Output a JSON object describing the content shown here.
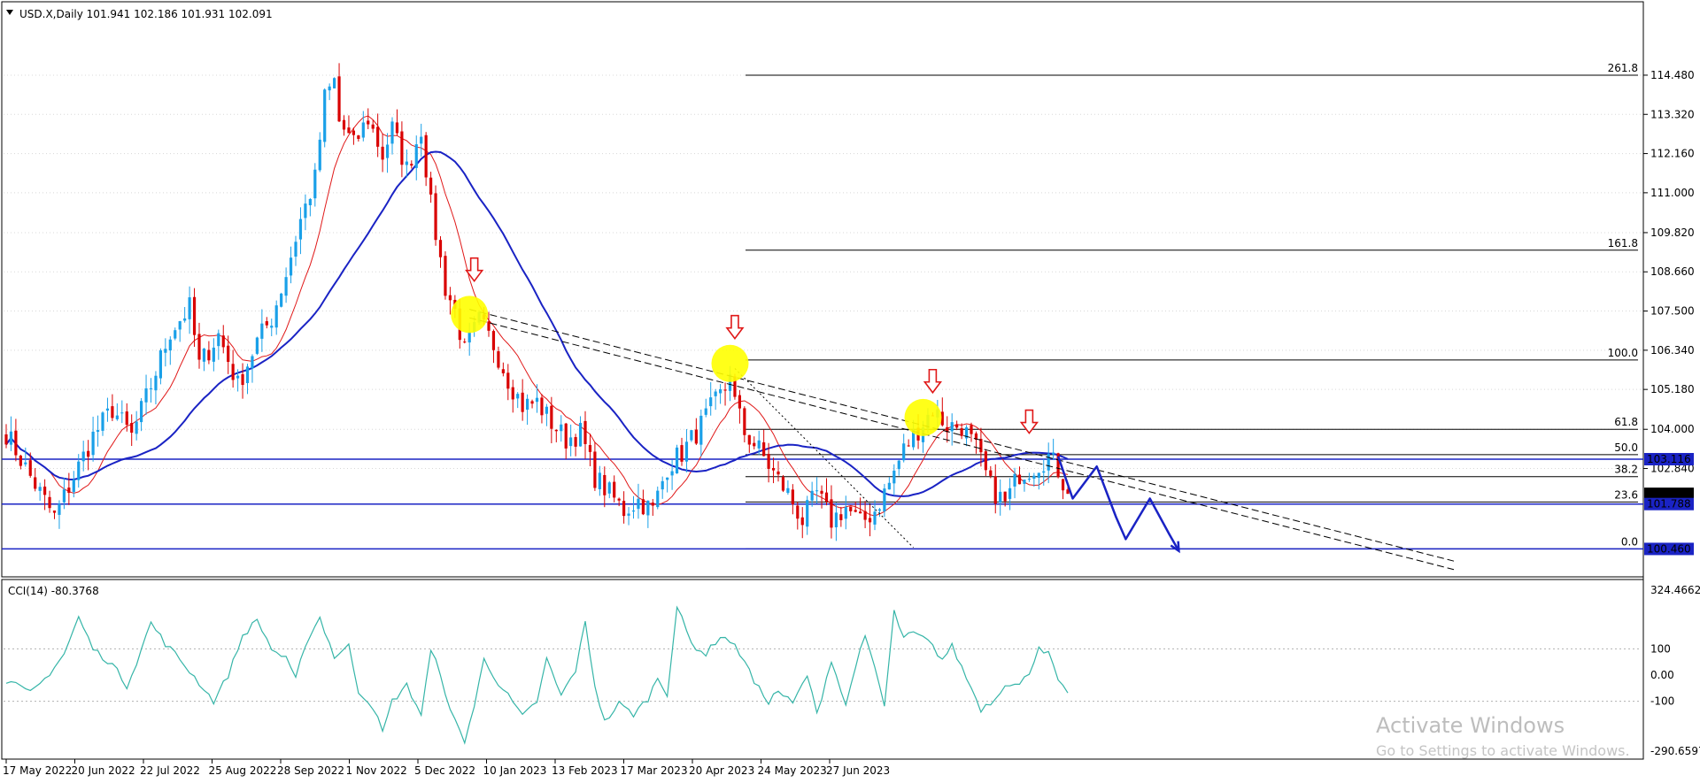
{
  "header": {
    "symbol_info": "USD.X,Daily  101.941 102.186 101.931 102.091",
    "indicator_info": "CCI(14) -80.3768"
  },
  "watermark": {
    "line1": "Activate Windows",
    "line2": "Go to Settings to activate Windows."
  },
  "colors": {
    "bull": "#1aa0e8",
    "bear": "#d90000",
    "ma_fast": "#e01818",
    "ma_slow": "#1a23c4",
    "level_line": "#1a23c4",
    "cci": "#36b5a8",
    "fib": "#000000",
    "highlight": "#ffff00",
    "arrow": "#e01818",
    "projection": "#1a23c4"
  },
  "chart_data": {
    "type": "candlestick",
    "price_axis": {
      "range": [
        100.0,
        115.5
      ],
      "ticks": [
        "114.480",
        "113.320",
        "112.160",
        "111.000",
        "109.820",
        "108.660",
        "107.500",
        "106.340",
        "105.180",
        "104.000",
        "102.840"
      ]
    },
    "price_tags": [
      {
        "label": "103.116",
        "value": 103.116,
        "style": "blue"
      },
      {
        "label": "102.091",
        "value": 102.091,
        "style": "black"
      },
      {
        "label": "101.788",
        "value": 101.788,
        "style": "blue"
      },
      {
        "label": "100.460",
        "value": 100.46,
        "style": "blue"
      }
    ],
    "x_labels": [
      "17 May 2022",
      "20 Jun 2022",
      "22 Jul 2022",
      "25 Aug 2022",
      "28 Sep 2022",
      "1 Nov 2022",
      "5 Dec 2022",
      "10 Jan 2023",
      "13 Feb 2023",
      "17 Mar 2023",
      "20 Apr 2023",
      "24 May 2023",
      "27 Jun 2023"
    ],
    "ohlc_path": [
      [
        0,
        103.9
      ],
      [
        5,
        102.6
      ],
      [
        10,
        101.4
      ],
      [
        14,
        102.6
      ],
      [
        18,
        103.8
      ],
      [
        22,
        104.6
      ],
      [
        26,
        103.8
      ],
      [
        30,
        105.3
      ],
      [
        34,
        106.9
      ],
      [
        38,
        107.6
      ],
      [
        40,
        105.9
      ],
      [
        44,
        106.8
      ],
      [
        48,
        105.3
      ],
      [
        52,
        106.6
      ],
      [
        55,
        107.3
      ],
      [
        58,
        108.6
      ],
      [
        61,
        110.2
      ],
      [
        64,
        111.4
      ],
      [
        66,
        113.8
      ],
      [
        68,
        114.3
      ],
      [
        69,
        113.1
      ],
      [
        72,
        112.4
      ],
      [
        75,
        113.2
      ],
      [
        78,
        112.1
      ],
      [
        80,
        112.9
      ],
      [
        83,
        111.7
      ],
      [
        86,
        112.9
      ],
      [
        88,
        110.6
      ],
      [
        91,
        108.2
      ],
      [
        93,
        107.5
      ],
      [
        95,
        106.3
      ],
      [
        98,
        107.2
      ],
      [
        101,
        106.5
      ],
      [
        104,
        105.5
      ],
      [
        107,
        104.7
      ],
      [
        110,
        104.8
      ],
      [
        113,
        104.2
      ],
      [
        116,
        103.7
      ],
      [
        119,
        103.9
      ],
      [
        122,
        102.6
      ],
      [
        125,
        102.1
      ],
      [
        128,
        101.6
      ],
      [
        131,
        101.9
      ],
      [
        134,
        101.6
      ],
      [
        137,
        102.9
      ],
      [
        140,
        103.3
      ],
      [
        143,
        103.9
      ],
      [
        146,
        104.6
      ],
      [
        149,
        105.2
      ],
      [
        150,
        105.8
      ],
      [
        151,
        104.8
      ],
      [
        153,
        103.9
      ],
      [
        156,
        103.4
      ],
      [
        159,
        102.7
      ],
      [
        162,
        102.1
      ],
      [
        165,
        101.3
      ],
      [
        168,
        102.1
      ],
      [
        171,
        101.3
      ],
      [
        174,
        101.7
      ],
      [
        177,
        101.2
      ],
      [
        180,
        101.6
      ],
      [
        183,
        102.4
      ],
      [
        186,
        103.4
      ],
      [
        189,
        104.0
      ],
      [
        192,
        104.6
      ],
      [
        195,
        104.1
      ],
      [
        198,
        104.1
      ],
      [
        201,
        103.4
      ],
      [
        204,
        102.3
      ],
      [
        207,
        101.8
      ],
      [
        210,
        102.7
      ],
      [
        213,
        102.9
      ],
      [
        216,
        103.2
      ],
      [
        218,
        102.8
      ],
      [
        220,
        102.1
      ]
    ],
    "cci": {
      "range": [
        -290.6597,
        324.4662
      ],
      "ticks": [
        "324.4662",
        "100",
        "0.00",
        "-100",
        "-290.6597"
      ],
      "path": [
        [
          0,
          -20
        ],
        [
          5,
          -70
        ],
        [
          8,
          -15
        ],
        [
          12,
          80
        ],
        [
          15,
          220
        ],
        [
          18,
          100
        ],
        [
          22,
          40
        ],
        [
          25,
          -40
        ],
        [
          27,
          50
        ],
        [
          30,
          200
        ],
        [
          33,
          120
        ],
        [
          36,
          60
        ],
        [
          40,
          -30
        ],
        [
          43,
          -100
        ],
        [
          46,
          0
        ],
        [
          49,
          150
        ],
        [
          52,
          210
        ],
        [
          55,
          100
        ],
        [
          58,
          60
        ],
        [
          60,
          -20
        ],
        [
          62,
          120
        ],
        [
          65,
          220
        ],
        [
          68,
          70
        ],
        [
          71,
          110
        ],
        [
          73,
          -60
        ],
        [
          76,
          -120
        ],
        [
          78,
          -220
        ],
        [
          80,
          -100
        ],
        [
          83,
          -40
        ],
        [
          86,
          -150
        ],
        [
          88,
          90
        ],
        [
          90,
          10
        ],
        [
          92,
          -140
        ],
        [
          95,
          -250
        ],
        [
          97,
          -120
        ],
        [
          99,
          60
        ],
        [
          102,
          -30
        ],
        [
          104,
          -80
        ],
        [
          107,
          -160
        ],
        [
          110,
          -100
        ],
        [
          112,
          60
        ],
        [
          115,
          -80
        ],
        [
          118,
          20
        ],
        [
          120,
          200
        ],
        [
          122,
          -40
        ],
        [
          124,
          -180
        ],
        [
          127,
          -110
        ],
        [
          130,
          -150
        ],
        [
          133,
          -90
        ],
        [
          135,
          -10
        ],
        [
          137,
          -70
        ],
        [
          139,
          260
        ],
        [
          142,
          120
        ],
        [
          145,
          80
        ],
        [
          148,
          150
        ],
        [
          150,
          130
        ],
        [
          153,
          60
        ],
        [
          155,
          -30
        ],
        [
          158,
          -100
        ],
        [
          160,
          -60
        ],
        [
          163,
          -110
        ],
        [
          166,
          0
        ],
        [
          168,
          -150
        ],
        [
          171,
          60
        ],
        [
          174,
          -120
        ],
        [
          176,
          40
        ],
        [
          178,
          140
        ],
        [
          180,
          30
        ],
        [
          182,
          -120
        ],
        [
          184,
          240
        ],
        [
          186,
          140
        ],
        [
          188,
          160
        ],
        [
          191,
          130
        ],
        [
          194,
          60
        ],
        [
          196,
          110
        ],
        [
          199,
          -10
        ],
        [
          202,
          -130
        ],
        [
          205,
          -90
        ],
        [
          207,
          -30
        ],
        [
          210,
          -40
        ],
        [
          212,
          10
        ],
        [
          214,
          110
        ],
        [
          216,
          80
        ],
        [
          218,
          -20
        ],
        [
          220,
          -80
        ]
      ]
    },
    "fibonacci": [
      {
        "label": "261.8",
        "value": 114.48
      },
      {
        "label": "161.8",
        "value": 109.3
      },
      {
        "label": "100.0",
        "value": 106.05
      },
      {
        "label": "61.8",
        "value": 104.0
      },
      {
        "label": "50.0",
        "value": 103.25
      },
      {
        "label": "38.2",
        "value": 102.6
      },
      {
        "label": "23.6",
        "value": 101.85
      },
      {
        "label": "0.0",
        "value": 100.46
      }
    ],
    "horizontal_levels": [
      103.116,
      101.788,
      100.46
    ],
    "trendlines": [
      {
        "style": "dashed-double",
        "from": [
          96,
          107.55
        ],
        "to": [
          300,
          100.1
        ]
      },
      {
        "style": "dashed-double",
        "from": [
          96,
          107.3
        ],
        "to": [
          300,
          99.85
        ]
      },
      {
        "style": "dotted",
        "from": [
          151,
          105.8
        ],
        "to": [
          188,
          100.5
        ]
      }
    ],
    "highlights": [
      [
        96,
        107.4
      ],
      [
        150,
        105.95
      ],
      [
        190,
        104.35
      ]
    ],
    "down_arrows": [
      [
        97,
        108.7
      ],
      [
        151,
        107.0
      ],
      [
        192,
        105.4
      ],
      [
        212,
        104.2
      ]
    ],
    "projection": [
      [
        218,
        103.2
      ],
      [
        221,
        101.95
      ],
      [
        226,
        102.9
      ],
      [
        230,
        101.4
      ],
      [
        232,
        100.75
      ],
      [
        237,
        101.95
      ],
      [
        241,
        100.9
      ],
      [
        243,
        100.4
      ]
    ]
  }
}
